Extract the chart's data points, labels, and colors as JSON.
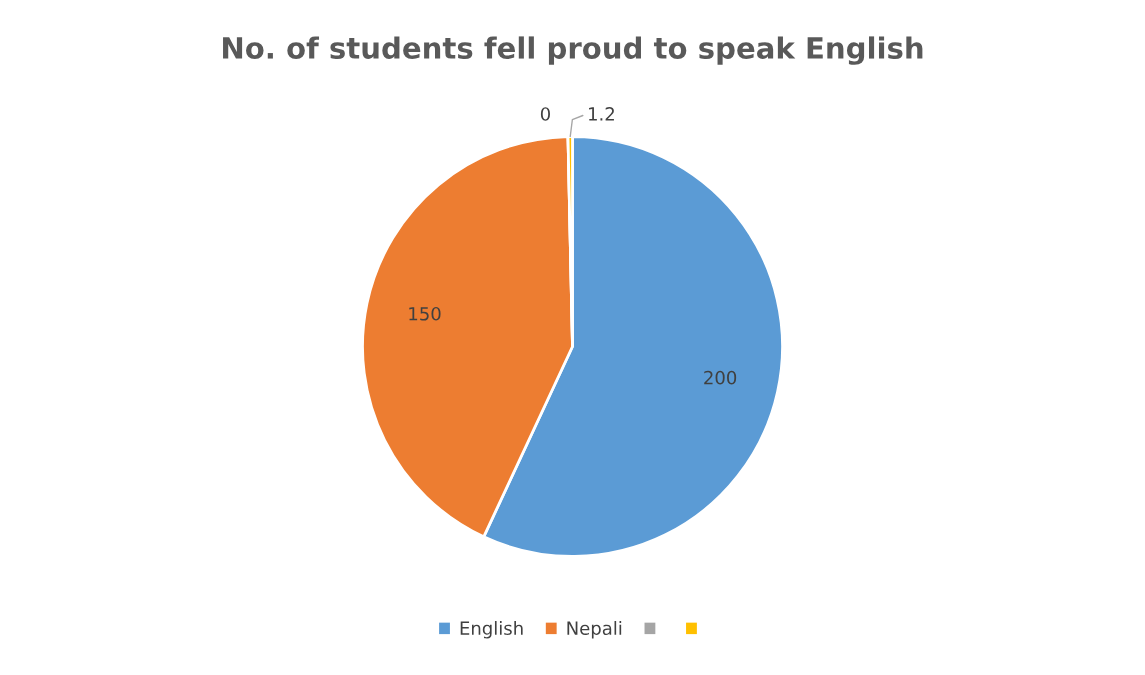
{
  "chart_data": {
    "type": "pie",
    "title": "No. of students fell proud to speak English",
    "categories": [
      "English",
      "Nepali",
      null,
      null
    ],
    "values": [
      200,
      150,
      0,
      1.2
    ],
    "colors": [
      "#5b9bd5",
      "#ed7d31",
      "#a5a5a5",
      "#ffc000"
    ],
    "value_labels": [
      "200",
      "150",
      "0",
      "1.2"
    ],
    "legend": "bottom"
  }
}
